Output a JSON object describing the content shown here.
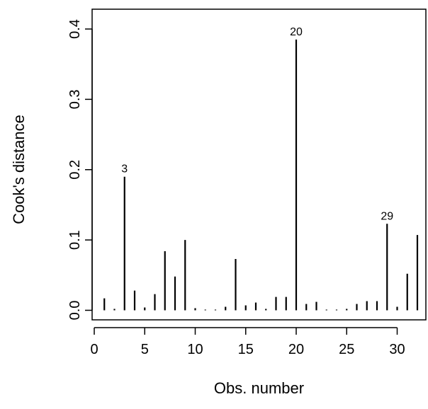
{
  "chart_data": {
    "type": "bar",
    "xlabel": "Obs. number",
    "ylabel": "Cook's distance",
    "xlim": [
      0,
      32
    ],
    "ylim": [
      0,
      0.4
    ],
    "x_ticks": [
      0,
      5,
      10,
      15,
      20,
      25,
      30
    ],
    "y_ticks": [
      0.0,
      0.1,
      0.2,
      0.3,
      0.4
    ],
    "x_tick_labels": [
      "0",
      "5",
      "10",
      "15",
      "20",
      "25",
      "30"
    ],
    "y_tick_labels": [
      "0.0",
      "0.1",
      "0.2",
      "0.3",
      "0.4"
    ],
    "x": [
      1,
      2,
      3,
      4,
      5,
      6,
      7,
      8,
      9,
      10,
      11,
      12,
      13,
      14,
      15,
      16,
      17,
      18,
      19,
      20,
      21,
      22,
      23,
      24,
      25,
      26,
      27,
      28,
      29,
      30,
      31,
      32
    ],
    "values": [
      0.017,
      0.002,
      0.19,
      0.028,
      0.004,
      0.023,
      0.084,
      0.048,
      0.1,
      0.003,
      0.001,
      0.001,
      0.005,
      0.073,
      0.007,
      0.011,
      0.002,
      0.019,
      0.019,
      0.385,
      0.009,
      0.012,
      0.001,
      0.001,
      0.002,
      0.009,
      0.013,
      0.013,
      0.123,
      0.005,
      0.052,
      0.107
    ],
    "annotations": [
      {
        "x": 3,
        "label": "3"
      },
      {
        "x": 20,
        "label": "20"
      },
      {
        "x": 29,
        "label": "29"
      }
    ],
    "grid": false
  }
}
